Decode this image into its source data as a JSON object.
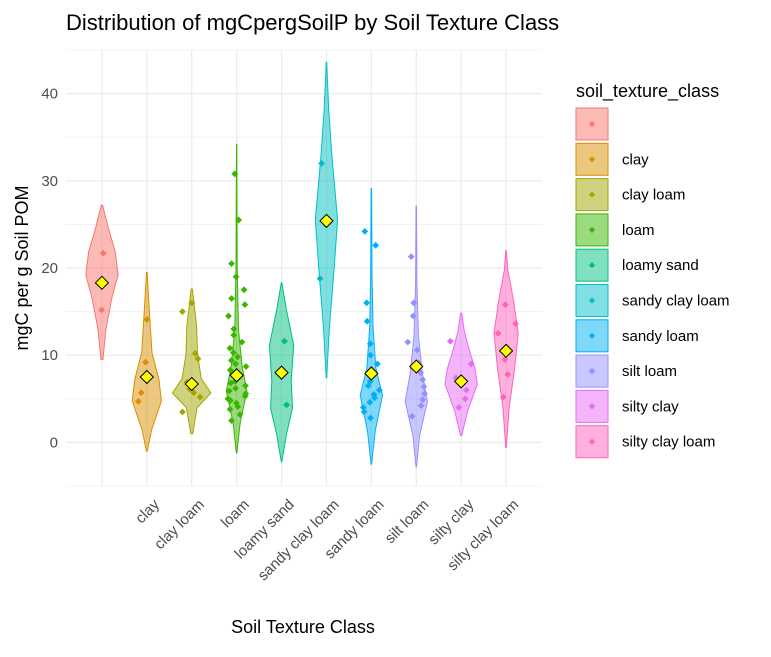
{
  "chart_data": {
    "type": "violin",
    "title": "Distribution of mgCpergSoilP by Soil Texture Class",
    "xlabel": "Soil Texture Class",
    "ylabel": "mgC per g Soil POM",
    "ylim": [
      -5,
      45
    ],
    "yticks": [
      0,
      10,
      20,
      30,
      40
    ],
    "grid": true,
    "legend": {
      "title": "soil_texture_class",
      "placement": "right"
    },
    "mean_marker_color": "#ffff00",
    "series": [
      {
        "name": "",
        "tick_label": "",
        "color": "#F8766D",
        "mean": 18.3,
        "range": [
          9.5,
          27.2
        ],
        "width": 0.8,
        "shape": [
          [
            0,
            0.06
          ],
          [
            0.2,
            0.25
          ],
          [
            0.4,
            0.62
          ],
          [
            0.55,
            1.0
          ],
          [
            0.7,
            0.82
          ],
          [
            0.85,
            0.4
          ],
          [
            1,
            0.04
          ]
        ],
        "points": [
          15.2,
          21.7
        ]
      },
      {
        "name": "clay",
        "tick_label": "clay",
        "color": "#D89000",
        "mean": 7.5,
        "range": [
          -1.0,
          19.5
        ],
        "width": 0.8,
        "shape": [
          [
            0,
            0.02
          ],
          [
            0.12,
            0.3
          ],
          [
            0.28,
            0.9
          ],
          [
            0.4,
            0.75
          ],
          [
            0.55,
            0.32
          ],
          [
            0.75,
            0.18
          ],
          [
            1,
            0.02
          ]
        ],
        "points": [
          4.7,
          5.7,
          9.2,
          14.1
        ]
      },
      {
        "name": "clay loam",
        "tick_label": "clay loam",
        "color": "#A3A500",
        "mean": 6.7,
        "range": [
          1.0,
          17.6
        ],
        "width": 0.95,
        "shape": [
          [
            0,
            0.05
          ],
          [
            0.18,
            0.28
          ],
          [
            0.28,
            1.0
          ],
          [
            0.38,
            0.5
          ],
          [
            0.55,
            0.3
          ],
          [
            0.75,
            0.25
          ],
          [
            1,
            0.03
          ]
        ],
        "points": [
          3.5,
          5.2,
          5.7,
          6.1,
          6.9,
          9.6,
          10.2,
          15.0,
          16.0
        ]
      },
      {
        "name": "loam",
        "tick_label": "loam",
        "color": "#39B600",
        "mean": 7.7,
        "range": [
          -1.2,
          34.2
        ],
        "width": 0.6,
        "shape": [
          [
            0,
            0.02
          ],
          [
            0.1,
            0.3
          ],
          [
            0.2,
            0.85
          ],
          [
            0.28,
            0.45
          ],
          [
            0.4,
            0.15
          ],
          [
            0.6,
            0.05
          ],
          [
            1,
            0.01
          ]
        ],
        "points": [
          2.5,
          3.2,
          3.8,
          4.1,
          4.5,
          4.8,
          5.0,
          5.3,
          5.6,
          5.9,
          6.2,
          6.5,
          6.8,
          7.0,
          7.3,
          7.6,
          8.0,
          8.3,
          8.7,
          9.0,
          9.4,
          9.8,
          10.3,
          10.8,
          11.5,
          12.3,
          13.0,
          14.5,
          15.8,
          16.5,
          17.5,
          19.0,
          20.5,
          25.5,
          30.8
        ]
      },
      {
        "name": "loamy sand",
        "tick_label": "loamy sand",
        "color": "#00BF7D",
        "mean": 8.0,
        "range": [
          -2.2,
          18.3
        ],
        "width": 0.6,
        "shape": [
          [
            0,
            0.02
          ],
          [
            0.15,
            0.4
          ],
          [
            0.3,
            0.9
          ],
          [
            0.45,
            0.8
          ],
          [
            0.65,
            1.0
          ],
          [
            0.85,
            0.4
          ],
          [
            1,
            0.02
          ]
        ],
        "points": [
          4.3,
          11.6
        ]
      },
      {
        "name": "sandy clay loam",
        "tick_label": "sandy clay loam",
        "color": "#00BFC4",
        "mean": 25.4,
        "range": [
          7.4,
          43.6
        ],
        "width": 0.55,
        "shape": [
          [
            0,
            0.02
          ],
          [
            0.15,
            0.25
          ],
          [
            0.35,
            0.7
          ],
          [
            0.5,
            1.0
          ],
          [
            0.7,
            0.5
          ],
          [
            0.85,
            0.2
          ],
          [
            1,
            0.02
          ]
        ],
        "points": [
          18.8,
          32.0
        ]
      },
      {
        "name": "sandy loam",
        "tick_label": "sandy loam",
        "color": "#00B0F6",
        "mean": 7.9,
        "range": [
          -2.5,
          29.1
        ],
        "width": 0.55,
        "shape": [
          [
            0,
            0.02
          ],
          [
            0.12,
            0.35
          ],
          [
            0.25,
            1.0
          ],
          [
            0.35,
            0.4
          ],
          [
            0.5,
            0.15
          ],
          [
            0.7,
            0.06
          ],
          [
            1,
            0.02
          ]
        ],
        "points": [
          2.8,
          3.5,
          4.0,
          4.6,
          5.1,
          5.5,
          6.0,
          6.5,
          7.0,
          7.5,
          8.2,
          9.0,
          10.0,
          11.3,
          13.9,
          16.0,
          22.6,
          24.2
        ]
      },
      {
        "name": "silt loam",
        "tick_label": "silt loam",
        "color": "#9590FF",
        "mean": 8.7,
        "range": [
          -2.8,
          27.1
        ],
        "width": 0.55,
        "shape": [
          [
            0,
            0.02
          ],
          [
            0.12,
            0.3
          ],
          [
            0.25,
            1.0
          ],
          [
            0.36,
            0.55
          ],
          [
            0.5,
            0.2
          ],
          [
            0.7,
            0.06
          ],
          [
            1,
            0.02
          ]
        ],
        "points": [
          3.0,
          4.2,
          4.9,
          5.6,
          6.4,
          7.2,
          8.0,
          9.1,
          10.6,
          11.5,
          14.5,
          16.0,
          21.3
        ]
      },
      {
        "name": "silty clay",
        "tick_label": "silty clay",
        "color": "#E76BF3",
        "mean": 7.0,
        "range": [
          0.8,
          14.8
        ],
        "width": 0.8,
        "shape": [
          [
            0,
            0.04
          ],
          [
            0.2,
            0.4
          ],
          [
            0.42,
            1.0
          ],
          [
            0.55,
            0.85
          ],
          [
            0.7,
            0.5
          ],
          [
            0.85,
            0.2
          ],
          [
            1,
            0.03
          ]
        ],
        "points": [
          4.0,
          5.0,
          6.0,
          7.4,
          9.0,
          11.6
        ]
      },
      {
        "name": "silty clay loam",
        "tick_label": "silty clay loam",
        "color": "#FF62BC",
        "mean": 10.5,
        "range": [
          -0.6,
          22.0
        ],
        "width": 0.6,
        "shape": [
          [
            0,
            0.02
          ],
          [
            0.2,
            0.25
          ],
          [
            0.4,
            0.7
          ],
          [
            0.58,
            1.0
          ],
          [
            0.75,
            0.6
          ],
          [
            0.9,
            0.15
          ],
          [
            1,
            0.02
          ]
        ],
        "points": [
          5.2,
          7.8,
          9.5,
          12.5,
          13.6,
          15.8
        ]
      }
    ]
  }
}
